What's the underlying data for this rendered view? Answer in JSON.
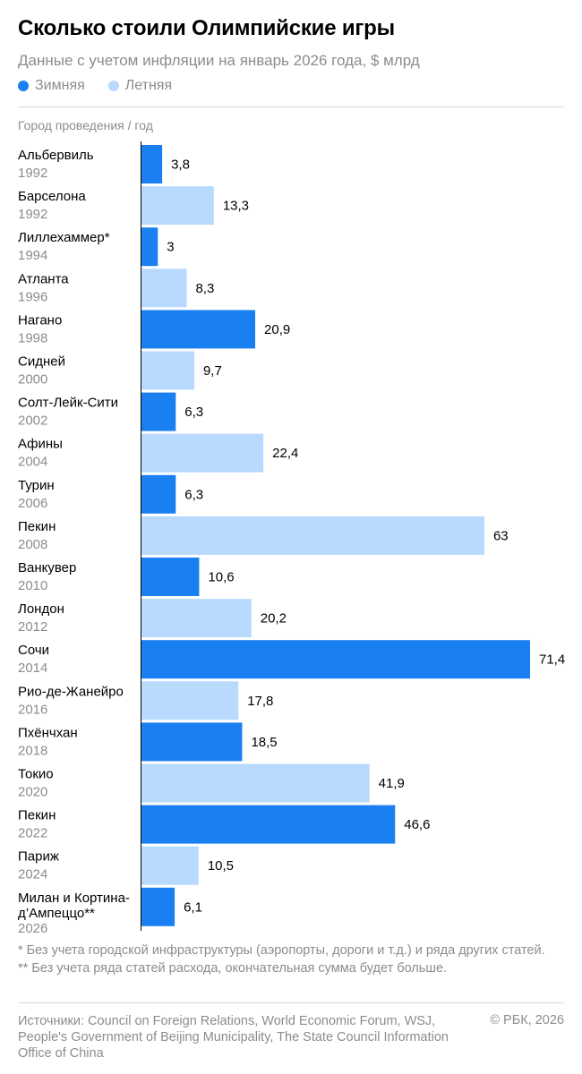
{
  "title": "Сколько стоили Олимпийские игры",
  "subtitle": "Данные с учетом инфляции на январь 2026 года, $ млрд",
  "legend": {
    "winter": "Зимняя",
    "summer": "Летняя"
  },
  "colors": {
    "winter": "#1a7ff0",
    "summer": "#b8daff"
  },
  "category_header": "Город проведения / год",
  "chart_data": {
    "type": "bar",
    "orientation": "horizontal",
    "title": "Сколько стоили Олимпийские игры",
    "xlabel": "$ млрд",
    "ylabel": "Город проведения / год",
    "xlim": [
      0,
      71.4
    ],
    "series": [
      {
        "name": "Зимняя"
      },
      {
        "name": "Летняя"
      }
    ],
    "rows": [
      {
        "city": "Альбервиль",
        "year": "1992",
        "value": 3.8,
        "label": "3,8",
        "type": "winter"
      },
      {
        "city": "Барселона",
        "year": "1992",
        "value": 13.3,
        "label": "13,3",
        "type": "summer"
      },
      {
        "city": "Лиллехаммер*",
        "year": "1994",
        "value": 3,
        "label": "3",
        "type": "winter"
      },
      {
        "city": "Атланта",
        "year": "1996",
        "value": 8.3,
        "label": "8,3",
        "type": "summer"
      },
      {
        "city": "Нагано",
        "year": "1998",
        "value": 20.9,
        "label": "20,9",
        "type": "winter"
      },
      {
        "city": "Сидней",
        "year": "2000",
        "value": 9.7,
        "label": "9,7",
        "type": "summer"
      },
      {
        "city": "Солт-Лейк-Сити",
        "year": "2002",
        "value": 6.3,
        "label": "6,3",
        "type": "winter"
      },
      {
        "city": "Афины",
        "year": "2004",
        "value": 22.4,
        "label": "22,4",
        "type": "summer"
      },
      {
        "city": "Турин",
        "year": "2006",
        "value": 6.3,
        "label": "6,3",
        "type": "winter"
      },
      {
        "city": "Пекин",
        "year": "2008",
        "value": 63,
        "label": "63",
        "type": "summer"
      },
      {
        "city": "Ванкувер",
        "year": "2010",
        "value": 10.6,
        "label": "10,6",
        "type": "winter"
      },
      {
        "city": "Лондон",
        "year": "2012",
        "value": 20.2,
        "label": "20,2",
        "type": "summer"
      },
      {
        "city": "Сочи",
        "year": "2014",
        "value": 71.4,
        "label": "71,4",
        "type": "winter"
      },
      {
        "city": "Рио-де-Жанейро",
        "year": "2016",
        "value": 17.8,
        "label": "17,8",
        "type": "summer"
      },
      {
        "city": "Пхёнчхан",
        "year": "2018",
        "value": 18.5,
        "label": "18,5",
        "type": "winter"
      },
      {
        "city": "Токио",
        "year": "2020",
        "value": 41.9,
        "label": "41,9",
        "type": "summer"
      },
      {
        "city": "Пекин",
        "year": "2022",
        "value": 46.6,
        "label": "46,6",
        "type": "winter"
      },
      {
        "city": "Париж",
        "year": "2024",
        "value": 10.5,
        "label": "10,5",
        "type": "summer"
      },
      {
        "city": "Милан и Кортина-д’Ампеццо**",
        "year": "2026",
        "value": 6.1,
        "label": "6,1",
        "type": "winter"
      }
    ]
  },
  "notes": {
    "note1": "* Без учета городской инфраструктуры (аэропорты, дороги и т.д.) и ряда других статей.",
    "note2": "** Без учета ряда статей расхода, окончательная сумма будет больше."
  },
  "sources": "Источники: Council on Foreign Relations, World Economic Forum, WSJ, People's Government of Beijing Municipality, The State Council Information Office of China",
  "copyright": "© РБК, 2026"
}
